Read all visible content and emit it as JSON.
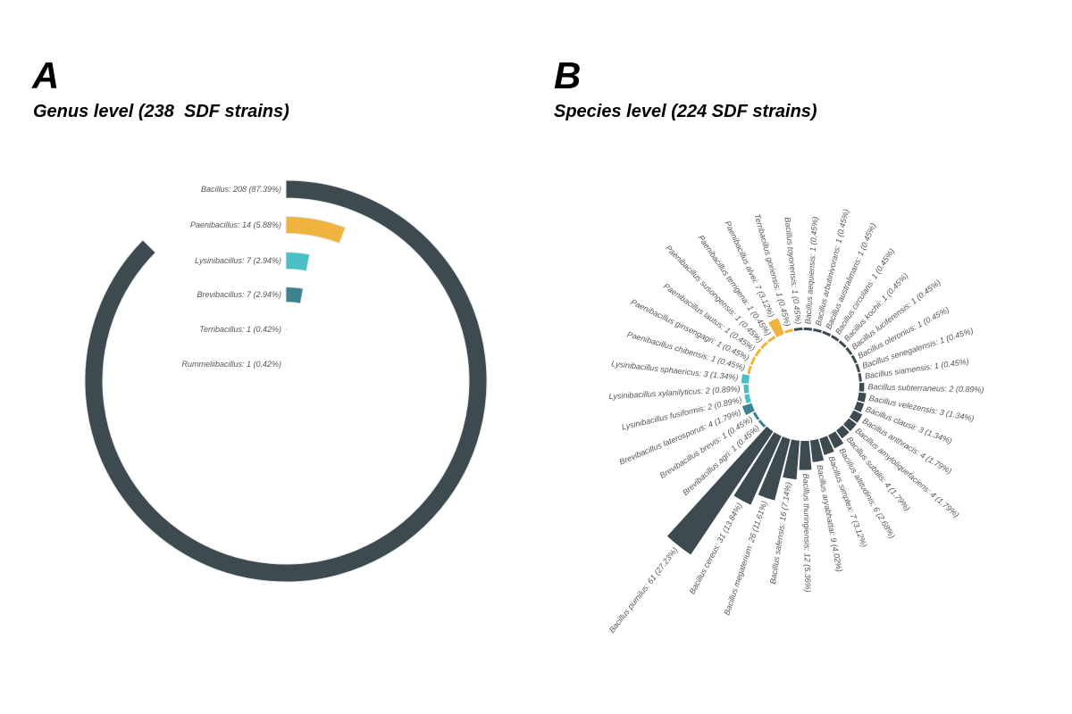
{
  "panel_a": {
    "letter": "A",
    "title": "Genus level (238  SDF strains)"
  },
  "panel_b": {
    "letter": "B",
    "title": "Species level (224 SDF strains)"
  },
  "chart_data": [
    {
      "type": "radial-bar",
      "max": 238,
      "categories": [
        {
          "label": "Bacillus: 208 (87.39%)",
          "value": 208,
          "color": "#3d4a50"
        },
        {
          "label": "Paenibacillus: 14 (5.88%)",
          "value": 14,
          "color": "#f0b33e"
        },
        {
          "label": "Lysinibacillus: 7 (2.94%)",
          "value": 7,
          "color": "#4bbfc6"
        },
        {
          "label": "Brevibacillus: 7 (2.94%)",
          "value": 7,
          "color": "#3c8290"
        },
        {
          "label": "Terribacillus: 1 (0.42%)",
          "value": 1,
          "color": "#f0b33e"
        },
        {
          "label": "Rummeliibacillus: 1 (0.42%)",
          "value": 1,
          "color": "#3d4a50"
        }
      ]
    },
    {
      "type": "circular-bar",
      "slices": [
        {
          "label": "Bacillus pumilus: 61 (27.23%)",
          "value": 61,
          "color": "#3d4a50"
        },
        {
          "label": "Bacillus cereus: 31 (13.84%)",
          "value": 31,
          "color": "#3d4a50"
        },
        {
          "label": "Bacillus megaterium: 26 (11.61%)",
          "value": 26,
          "color": "#3d4a50"
        },
        {
          "label": "Bacillus safensis: 16 (7.14%)",
          "value": 16,
          "color": "#3d4a50"
        },
        {
          "label": "Bacillus thuringiensis: 12 (5.36%)",
          "value": 12,
          "color": "#3d4a50"
        },
        {
          "label": "Bacillus aryabhattai: 9 (4.02%)",
          "value": 9,
          "color": "#3d4a50"
        },
        {
          "label": "Bacillus simplex: 7 (3.12%)",
          "value": 7,
          "color": "#3d4a50"
        },
        {
          "label": "Bacillus altitudinis: 6 (2.68%)",
          "value": 6,
          "color": "#3d4a50"
        },
        {
          "label": "Bacillus subtilis: 4 (1.79%)",
          "value": 4,
          "color": "#3d4a50"
        },
        {
          "label": "Bacillus amyloliquefaciens: 4 (1.79%)",
          "value": 4,
          "color": "#3d4a50"
        },
        {
          "label": "Bacillus anthracis: 4 (1.79%)",
          "value": 4,
          "color": "#3d4a50"
        },
        {
          "label": "Bacillus clausii: 3 (1.34%)",
          "value": 3,
          "color": "#3d4a50"
        },
        {
          "label": "Bacillus velezensis: 3 (1.34%)",
          "value": 3,
          "color": "#3d4a50"
        },
        {
          "label": "Bacillus subterraneus: 2 (0.89%)",
          "value": 2,
          "color": "#3d4a50"
        },
        {
          "label": "Bacillus siamensis: 1 (0.45%)",
          "value": 1,
          "color": "#3d4a50"
        },
        {
          "label": "Bacillus senegalensis: 1 (0.45%)",
          "value": 1,
          "color": "#3d4a50"
        },
        {
          "label": "Bacillus oleronius: 1 (0.45%)",
          "value": 1,
          "color": "#3d4a50"
        },
        {
          "label": "Bacillus luciferensis: 1 (0.45%)",
          "value": 1,
          "color": "#3d4a50"
        },
        {
          "label": "Bacillus kochii: 1 (0.45%)",
          "value": 1,
          "color": "#3d4a50"
        },
        {
          "label": "Bacillus circulans: 1 (0.45%)",
          "value": 1,
          "color": "#3d4a50"
        },
        {
          "label": "Bacillus australimaris: 1 (0.45%)",
          "value": 1,
          "color": "#3d4a50"
        },
        {
          "label": "Bacillus arbutinivorans: 1 (0.45%)",
          "value": 1,
          "color": "#3d4a50"
        },
        {
          "label": "Bacillus aequiensis: 1 (0.45%)",
          "value": 1,
          "color": "#3d4a50"
        },
        {
          "label": "Bacillus toyonensis: 1 (0.45%)",
          "value": 1,
          "color": "#3d4a50"
        },
        {
          "label": "Terribacillus goriensis: 1 (0.45%)",
          "value": 1,
          "color": "#f0b33e"
        },
        {
          "label": "Paenibacillus alvei: 7 (3.12%)",
          "value": 7,
          "color": "#f0b33e"
        },
        {
          "label": "Paenibacillus terrigena: 1 (0.45%)",
          "value": 1,
          "color": "#f0b33e"
        },
        {
          "label": "Paenibacillus susongensis: 1 (0.45%)",
          "value": 1,
          "color": "#f0b33e"
        },
        {
          "label": "Paenibacillus lautus: 1 (0.45%)",
          "value": 1,
          "color": "#f0b33e"
        },
        {
          "label": "Paenibacillus ginsengagri: 1 (0.45%)",
          "value": 1,
          "color": "#f0b33e"
        },
        {
          "label": "Paenibacillus chibensis: 1 (0.45%)",
          "value": 1,
          "color": "#f0b33e"
        },
        {
          "label": "Lysinibacillus sphaericus: 3 (1.34%)",
          "value": 3,
          "color": "#4bbfc6"
        },
        {
          "label": "Lysinibacillus xylanilyticus: 2 (0.89%)",
          "value": 2,
          "color": "#4bbfc6"
        },
        {
          "label": "Lysinibacillus fusiformis: 2 (0.89%)",
          "value": 2,
          "color": "#4bbfc6"
        },
        {
          "label": "Brevibacillus laterosporus: 4 (1.79%)",
          "value": 4,
          "color": "#3c8290"
        },
        {
          "label": "Brevibacillus brevis: 1 (0.45%)",
          "value": 1,
          "color": "#3c8290"
        },
        {
          "label": "Brevibacillus agri: 1 (0.45%)",
          "value": 1,
          "color": "#3c8290"
        }
      ]
    }
  ]
}
